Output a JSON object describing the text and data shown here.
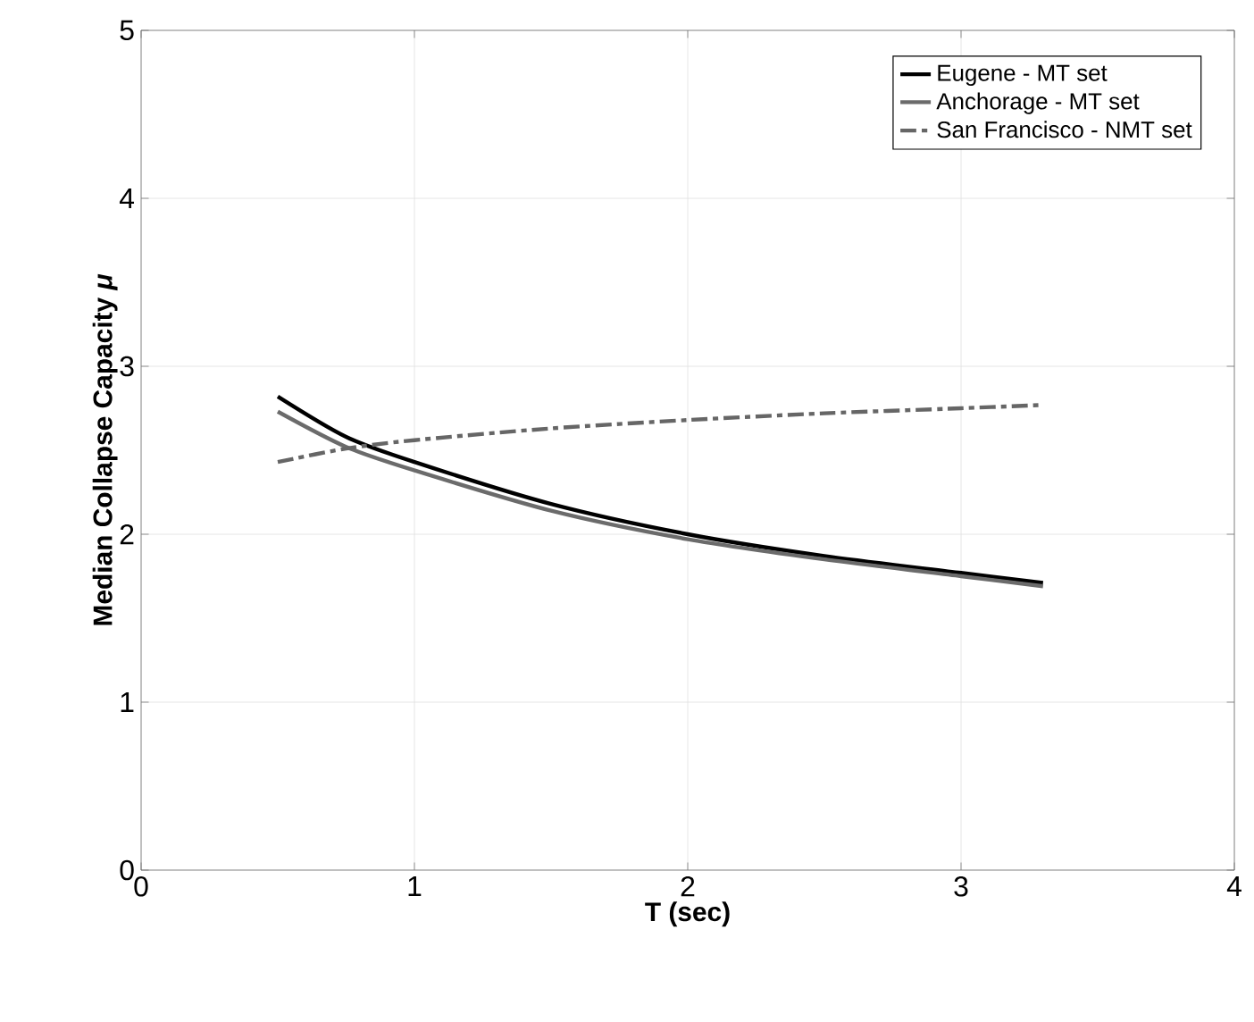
{
  "chart_data": {
    "type": "line",
    "xlabel": "T (sec)",
    "ylabel": "Median Collapse Capacity *μ*",
    "xlim": [
      0,
      4
    ],
    "ylim": [
      0,
      5
    ],
    "xticks": [
      0,
      1,
      2,
      3,
      4
    ],
    "yticks": [
      0,
      1,
      2,
      3,
      4,
      5
    ],
    "x": [
      0.5,
      0.75,
      1,
      1.5,
      2,
      2.5,
      3,
      3.3
    ],
    "series": [
      {
        "name": "Eugene - MT set",
        "color": "#000000",
        "line_style": "solid",
        "values": [
          2.82,
          2.58,
          2.43,
          2.18,
          2.0,
          1.87,
          1.77,
          1.71
        ]
      },
      {
        "name": "Anchorage - MT set",
        "color": "#6b6b6b",
        "line_style": "solid",
        "values": [
          2.73,
          2.52,
          2.38,
          2.14,
          1.97,
          1.85,
          1.75,
          1.69
        ]
      },
      {
        "name": "San Francisco - NMT set",
        "color": "#666666",
        "line_style": "dashdot",
        "values": [
          2.43,
          2.51,
          2.56,
          2.63,
          2.68,
          2.72,
          2.75,
          2.77
        ]
      }
    ],
    "grid": true,
    "legend": "top right",
    "marker": "none"
  }
}
